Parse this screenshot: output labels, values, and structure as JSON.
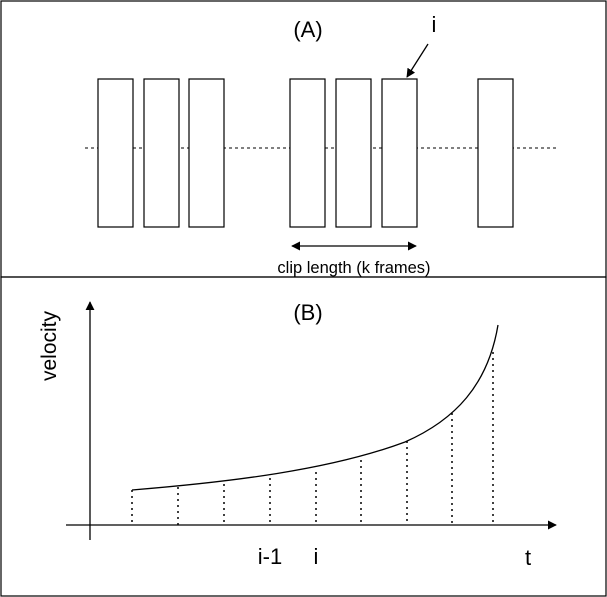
{
  "panel_a": {
    "title": "(A)",
    "arrow_label": "i",
    "span_label": "clip length (k frames)"
  },
  "panel_b": {
    "title": "(B)",
    "y_axis_label": "velocity",
    "x_axis_label": "t",
    "tick_labels": [
      "i-1",
      "i"
    ]
  }
}
